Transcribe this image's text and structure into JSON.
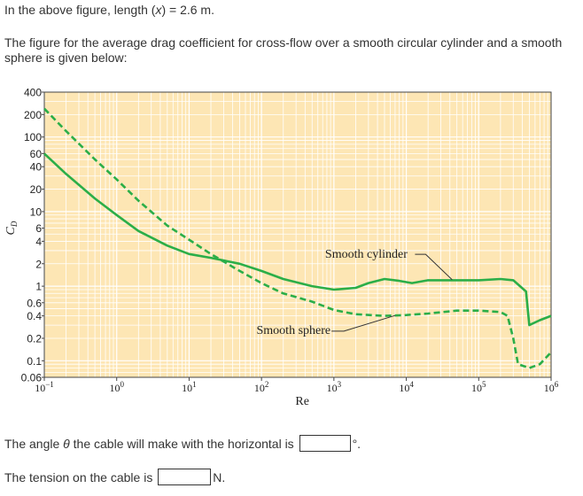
{
  "texts": {
    "length_prefix": "In the above figure, length (",
    "length_var": "x",
    "length_suffix": ") = 2.6 m.",
    "intro": "The figure for the average drag coefficient for cross-flow over a smooth circular cylinder and a smooth sphere is given below:",
    "angle_prefix": "The angle ",
    "angle_symbol": "θ",
    "angle_suffix": " the cable will make with the horizontal is",
    "angle_unit": "°.",
    "tension_label": "The tension on the cable is",
    "tension_unit": "N."
  },
  "colors": {
    "plot_background": "#fde6b4",
    "grid": "#ffffff",
    "curve": "#2bae48"
  },
  "chart_data": {
    "type": "line",
    "title": "",
    "xlabel": "Re",
    "ylabel": "C",
    "ylabel_subscript": "D",
    "xscale": "log",
    "yscale": "log",
    "xlim": [
      0.1,
      1000000
    ],
    "ylim": [
      0.06,
      400
    ],
    "grid": true,
    "x_ticks": [
      {
        "value": 0.1,
        "base": "10",
        "exp": "−1"
      },
      {
        "value": 1,
        "base": "10",
        "exp": "0"
      },
      {
        "value": 10,
        "base": "10",
        "exp": "1"
      },
      {
        "value": 100,
        "base": "10",
        "exp": "2"
      },
      {
        "value": 1000,
        "base": "10",
        "exp": "3"
      },
      {
        "value": 10000,
        "base": "10",
        "exp": "4"
      },
      {
        "value": 100000,
        "base": "10",
        "exp": "5"
      },
      {
        "value": 1000000,
        "base": "10",
        "exp": "6"
      }
    ],
    "y_ticks": [
      {
        "value": 400,
        "label": "400"
      },
      {
        "value": 200,
        "label": "200"
      },
      {
        "value": 100,
        "label": "100"
      },
      {
        "value": 60,
        "label": "60"
      },
      {
        "value": 40,
        "label": "40"
      },
      {
        "value": 20,
        "label": "20"
      },
      {
        "value": 10,
        "label": "10"
      },
      {
        "value": 6,
        "label": "6"
      },
      {
        "value": 4,
        "label": "4"
      },
      {
        "value": 2,
        "label": "2"
      },
      {
        "value": 1,
        "label": "1"
      },
      {
        "value": 0.6,
        "label": "0.6"
      },
      {
        "value": 0.4,
        "label": "0.4"
      },
      {
        "value": 0.2,
        "label": "0.2"
      },
      {
        "value": 0.1,
        "label": "0.1"
      },
      {
        "value": 0.06,
        "label": "0.06"
      }
    ],
    "series": [
      {
        "name": "Smooth cylinder",
        "style": "solid",
        "label_at": [
          2800,
          2.4
        ],
        "points": [
          [
            0.1,
            60
          ],
          [
            0.2,
            32
          ],
          [
            0.5,
            15
          ],
          [
            1,
            9
          ],
          [
            2,
            5.5
          ],
          [
            5,
            3.5
          ],
          [
            10,
            2.7
          ],
          [
            20,
            2.4
          ],
          [
            50,
            2.0
          ],
          [
            100,
            1.6
          ],
          [
            200,
            1.25
          ],
          [
            500,
            1.0
          ],
          [
            1000,
            0.9
          ],
          [
            2000,
            0.95
          ],
          [
            3000,
            1.1
          ],
          [
            5000,
            1.25
          ],
          [
            8000,
            1.18
          ],
          [
            12000,
            1.1
          ],
          [
            20000,
            1.2
          ],
          [
            40000,
            1.2
          ],
          [
            100000,
            1.2
          ],
          [
            200000,
            1.25
          ],
          [
            300000,
            1.2
          ],
          [
            450000,
            0.85
          ],
          [
            500000,
            0.3
          ],
          [
            700000,
            0.35
          ],
          [
            1000000,
            0.4
          ]
        ]
      },
      {
        "name": "Smooth sphere",
        "style": "dashed",
        "label_at": [
          900,
          0.23
        ],
        "points": [
          [
            0.1,
            240
          ],
          [
            0.2,
            120
          ],
          [
            0.5,
            50
          ],
          [
            1,
            27
          ],
          [
            2,
            14
          ],
          [
            5,
            6.5
          ],
          [
            10,
            4.2
          ],
          [
            20,
            2.7
          ],
          [
            50,
            1.6
          ],
          [
            100,
            1.1
          ],
          [
            200,
            0.8
          ],
          [
            500,
            0.62
          ],
          [
            1000,
            0.48
          ],
          [
            2000,
            0.42
          ],
          [
            5000,
            0.4
          ],
          [
            10000,
            0.41
          ],
          [
            20000,
            0.43
          ],
          [
            50000,
            0.47
          ],
          [
            100000,
            0.47
          ],
          [
            200000,
            0.45
          ],
          [
            250000,
            0.4
          ],
          [
            300000,
            0.2
          ],
          [
            350000,
            0.09
          ],
          [
            500000,
            0.08
          ],
          [
            700000,
            0.09
          ],
          [
            1000000,
            0.13
          ]
        ]
      }
    ]
  }
}
